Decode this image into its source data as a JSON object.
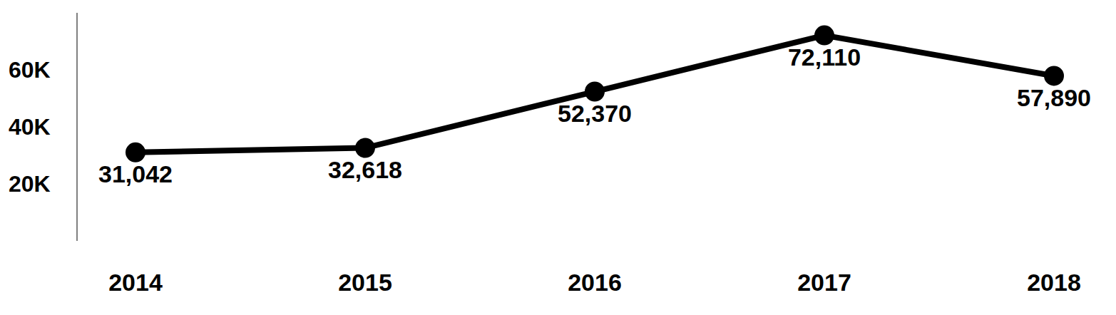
{
  "chart_data": {
    "type": "line",
    "categories": [
      "2014",
      "2015",
      "2016",
      "2017",
      "2018"
    ],
    "values": [
      31042,
      32618,
      52370,
      72110,
      57890
    ],
    "value_labels": [
      "31,042",
      "32,618",
      "52,370",
      "72,110",
      "57,890"
    ],
    "data_labels": true,
    "color": "#000000",
    "marker": "circle",
    "ylim": [
      0,
      80000
    ],
    "yticks": [
      {
        "value": 20000,
        "label": "20K"
      },
      {
        "value": 40000,
        "label": "40K"
      },
      {
        "value": 60000,
        "label": "60K"
      }
    ],
    "grid": false
  }
}
